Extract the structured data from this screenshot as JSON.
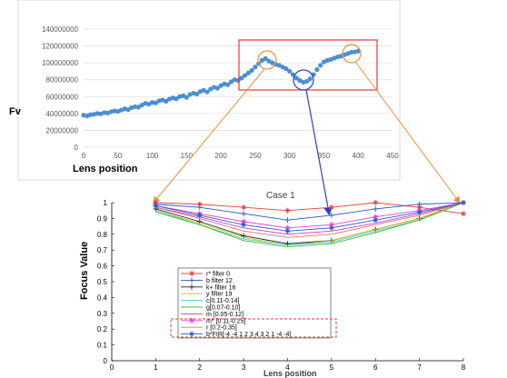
{
  "chart_data": [
    {
      "type": "scatter",
      "title": "",
      "ylabel": "Fv",
      "xlabel": "Lens position",
      "xlim": [
        0,
        450
      ],
      "ylim": [
        0,
        140000000
      ],
      "xticks": [
        "0",
        "50",
        "100",
        "150",
        "200",
        "250",
        "300",
        "350",
        "400",
        "450"
      ],
      "yticks": [
        "0",
        "20000000",
        "40000000",
        "60000000",
        "80000000",
        "100000000",
        "120000000",
        "140000000"
      ],
      "grid": true,
      "marker_color": "#4a8fd4",
      "points": [
        [
          0,
          38000000
        ],
        [
          5,
          37000000
        ],
        [
          10,
          38500000
        ],
        [
          15,
          39000000
        ],
        [
          20,
          40000000
        ],
        [
          25,
          39500000
        ],
        [
          30,
          41000000
        ],
        [
          35,
          40500000
        ],
        [
          40,
          42000000
        ],
        [
          45,
          43000000
        ],
        [
          50,
          42500000
        ],
        [
          55,
          44000000
        ],
        [
          60,
          45500000
        ],
        [
          65,
          44500000
        ],
        [
          70,
          47000000
        ],
        [
          75,
          48000000
        ],
        [
          80,
          47500000
        ],
        [
          85,
          50000000
        ],
        [
          90,
          52000000
        ],
        [
          95,
          51000000
        ],
        [
          100,
          53000000
        ],
        [
          105,
          52500000
        ],
        [
          110,
          55000000
        ],
        [
          115,
          56000000
        ],
        [
          120,
          54500000
        ],
        [
          125,
          57000000
        ],
        [
          130,
          58500000
        ],
        [
          135,
          57500000
        ],
        [
          140,
          60000000
        ],
        [
          145,
          61000000
        ],
        [
          150,
          59000000
        ],
        [
          155,
          62500000
        ],
        [
          160,
          64000000
        ],
        [
          165,
          63000000
        ],
        [
          170,
          66000000
        ],
        [
          175,
          67500000
        ],
        [
          180,
          65500000
        ],
        [
          185,
          69000000
        ],
        [
          190,
          71000000
        ],
        [
          195,
          70000000
        ],
        [
          200,
          73000000
        ],
        [
          205,
          75000000
        ],
        [
          210,
          74000000
        ],
        [
          215,
          77500000
        ],
        [
          220,
          80000000
        ],
        [
          225,
          79000000
        ],
        [
          230,
          82000000
        ],
        [
          235,
          85000000
        ],
        [
          240,
          88000000
        ],
        [
          245,
          91000000
        ],
        [
          250,
          95000000
        ],
        [
          255,
          99000000
        ],
        [
          260,
          103000000
        ],
        [
          265,
          105000000
        ],
        [
          270,
          102000000
        ],
        [
          275,
          100000000
        ],
        [
          280,
          98000000
        ],
        [
          285,
          97000000
        ],
        [
          290,
          95000000
        ],
        [
          295,
          93000000
        ],
        [
          300,
          90000000
        ],
        [
          305,
          86000000
        ],
        [
          310,
          82000000
        ],
        [
          315,
          79000000
        ],
        [
          320,
          77000000
        ],
        [
          325,
          78000000
        ],
        [
          330,
          81000000
        ],
        [
          335,
          86000000
        ],
        [
          340,
          92000000
        ],
        [
          345,
          97000000
        ],
        [
          350,
          101000000
        ],
        [
          355,
          103000000
        ],
        [
          360,
          104000000
        ],
        [
          365,
          105500000
        ],
        [
          370,
          107000000
        ],
        [
          375,
          108000000
        ],
        [
          380,
          109500000
        ],
        [
          385,
          111000000
        ],
        [
          390,
          112500000
        ],
        [
          395,
          113000000
        ],
        [
          400,
          114000000
        ]
      ],
      "annotation": "highlight box around the region x≈230–410 with circles at x≈265, x≈318 and x≈390"
    },
    {
      "type": "line",
      "title": "Case 1",
      "xlabel": "Lens position",
      "ylabel": "Focus Value",
      "xlim": [
        0,
        8
      ],
      "ylim": [
        0,
        1
      ],
      "xticks": [
        "0",
        "1",
        "2",
        "3",
        "4",
        "5",
        "6",
        "7",
        "8"
      ],
      "yticks": [
        "0",
        "0.1",
        "0.2",
        "0.3",
        "0.4",
        "0.5",
        "0.6",
        "0.7",
        "0.8",
        "0.9",
        "1"
      ],
      "x": [
        1,
        2,
        3,
        4,
        5,
        6,
        7,
        8
      ],
      "series": [
        {
          "name": "r* filter 0",
          "color": "#e8403a",
          "marker": "*",
          "values": [
            1.0,
            0.99,
            0.97,
            0.95,
            0.97,
            1.0,
            0.97,
            0.93
          ]
        },
        {
          "name": "b filter 12",
          "color": "#2a56c8",
          "marker": "+",
          "values": [
            0.99,
            0.97,
            0.93,
            0.89,
            0.92,
            0.96,
            0.99,
            1.0
          ]
        },
        {
          "name": "k+ filter 16",
          "color": "#202020",
          "marker": "+",
          "values": [
            0.96,
            0.88,
            0.79,
            0.74,
            0.76,
            0.83,
            0.9,
            1.0
          ]
        },
        {
          "name": "y filter 19",
          "color": "#d6c000",
          "marker": "",
          "values": [
            0.95,
            0.87,
            0.78,
            0.73,
            0.76,
            0.83,
            0.9,
            1.0
          ]
        },
        {
          "name": "c[0.11-0.14]",
          "color": "#40d0d8",
          "marker": "",
          "values": [
            0.95,
            0.86,
            0.77,
            0.73,
            0.75,
            0.82,
            0.89,
            1.0
          ]
        },
        {
          "name": "g[0.07-0.10]",
          "color": "#40b840",
          "marker": "",
          "values": [
            0.94,
            0.86,
            0.76,
            0.72,
            0.74,
            0.81,
            0.89,
            1.0
          ]
        },
        {
          "name": "m [0.05-0.12]",
          "color": "#c040c0",
          "marker": "",
          "values": [
            0.97,
            0.91,
            0.84,
            0.8,
            0.82,
            0.87,
            0.93,
            1.0
          ]
        },
        {
          "name": "m* [0.11-0.25]",
          "color": "#e040e0",
          "marker": "*",
          "values": [
            0.98,
            0.93,
            0.88,
            0.84,
            0.86,
            0.91,
            0.95,
            1.0
          ]
        },
        {
          "name": "r [0.2-0.35]",
          "color": "#e07070",
          "marker": "",
          "values": [
            0.97,
            0.9,
            0.82,
            0.78,
            0.8,
            0.86,
            0.92,
            1.0
          ]
        },
        {
          "name": "b*FIR[-4 -4 1 2 3 4 3 2 1 -4 -4]",
          "color": "#2a56c8",
          "marker": "*",
          "values": [
            0.98,
            0.92,
            0.86,
            0.82,
            0.84,
            0.89,
            0.94,
            1.0
          ]
        }
      ],
      "legend_position": "lower-left",
      "highlighted_legend_entries": [
        "r [0.2-0.35]",
        "b*FIR[-4 -4 1 2 3 4 3 2 1 -4 -4]"
      ]
    }
  ]
}
